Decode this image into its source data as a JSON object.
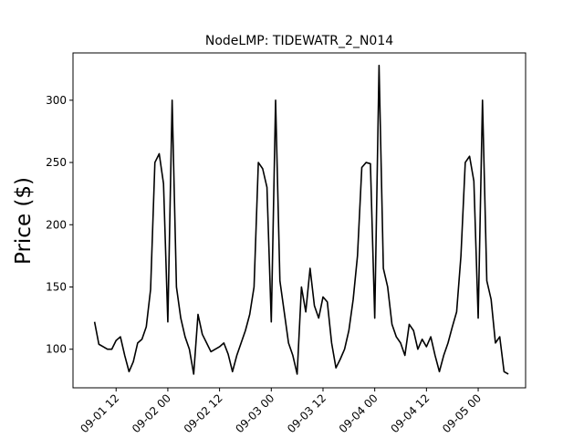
{
  "chart_data": {
    "type": "line",
    "title": "NodeLMP: TIDEWATR_2_N014",
    "y_label": "Price ($)",
    "x": [
      "09-01 07",
      "09-01 08",
      "09-01 09",
      "09-01 10",
      "09-01 11",
      "09-01 12",
      "09-01 13",
      "09-01 14",
      "09-01 15",
      "09-01 16",
      "09-01 17",
      "09-01 18",
      "09-01 19",
      "09-01 20",
      "09-01 21",
      "09-01 22",
      "09-01 23",
      "09-02 00",
      "09-02 01",
      "09-02 02",
      "09-02 03",
      "09-02 04",
      "09-02 05",
      "09-02 06",
      "09-02 07",
      "09-02 08",
      "09-02 09",
      "09-02 10",
      "09-02 11",
      "09-02 12",
      "09-02 13",
      "09-02 14",
      "09-02 15",
      "09-02 16",
      "09-02 17",
      "09-02 18",
      "09-02 19",
      "09-02 20",
      "09-02 21",
      "09-02 22",
      "09-02 23",
      "09-03 00",
      "09-03 01",
      "09-03 02",
      "09-03 03",
      "09-03 04",
      "09-03 05",
      "09-03 06",
      "09-03 07",
      "09-03 08",
      "09-03 09",
      "09-03 10",
      "09-03 11",
      "09-03 12",
      "09-03 13",
      "09-03 14",
      "09-03 15",
      "09-03 16",
      "09-03 17",
      "09-03 18",
      "09-03 19",
      "09-03 20",
      "09-03 21",
      "09-03 22",
      "09-03 23",
      "09-04 00",
      "09-04 01",
      "09-04 02",
      "09-04 03",
      "09-04 04",
      "09-04 05",
      "09-04 06",
      "09-04 07",
      "09-04 08",
      "09-04 09",
      "09-04 10",
      "09-04 11",
      "09-04 12",
      "09-04 13",
      "09-04 14",
      "09-04 15",
      "09-04 16",
      "09-04 17",
      "09-04 18",
      "09-04 19",
      "09-04 20",
      "09-04 21",
      "09-04 22",
      "09-04 23",
      "09-05 00",
      "09-05 01",
      "09-05 02",
      "09-05 03",
      "09-05 04",
      "09-05 05",
      "09-05 06",
      "09-05 07"
    ],
    "series": [
      {
        "color": "#000000",
        "values": [
          122,
          104,
          102,
          100,
          100,
          107,
          110,
          95,
          82,
          90,
          105,
          108,
          118,
          148,
          250,
          257,
          233,
          122,
          300,
          150,
          125,
          110,
          100,
          80,
          128,
          112,
          105,
          98,
          100,
          102,
          105,
          96,
          82,
          95,
          105,
          115,
          128,
          150,
          250,
          245,
          230,
          122,
          300,
          155,
          130,
          105,
          95,
          80,
          150,
          130,
          165,
          135,
          125,
          142,
          138,
          105,
          85,
          92,
          100,
          115,
          140,
          175,
          246,
          250,
          249,
          125,
          328,
          165,
          150,
          120,
          110,
          105,
          95,
          120,
          115,
          100,
          108,
          102,
          110,
          95,
          82,
          95,
          105,
          118,
          130,
          175,
          250,
          255,
          235,
          125,
          300,
          155,
          140,
          105,
          110,
          82,
          80
        ]
      }
    ],
    "xlim": [
      "09-01 02",
      "09-05 11"
    ],
    "xticks": [
      "09-01 12",
      "09-02 00",
      "09-02 12",
      "09-03 00",
      "09-03 12",
      "09-04 00",
      "09-04 12",
      "09-05 00"
    ],
    "ylim": [
      69,
      338
    ],
    "yticks": [
      100,
      150,
      200,
      250,
      300
    ]
  }
}
